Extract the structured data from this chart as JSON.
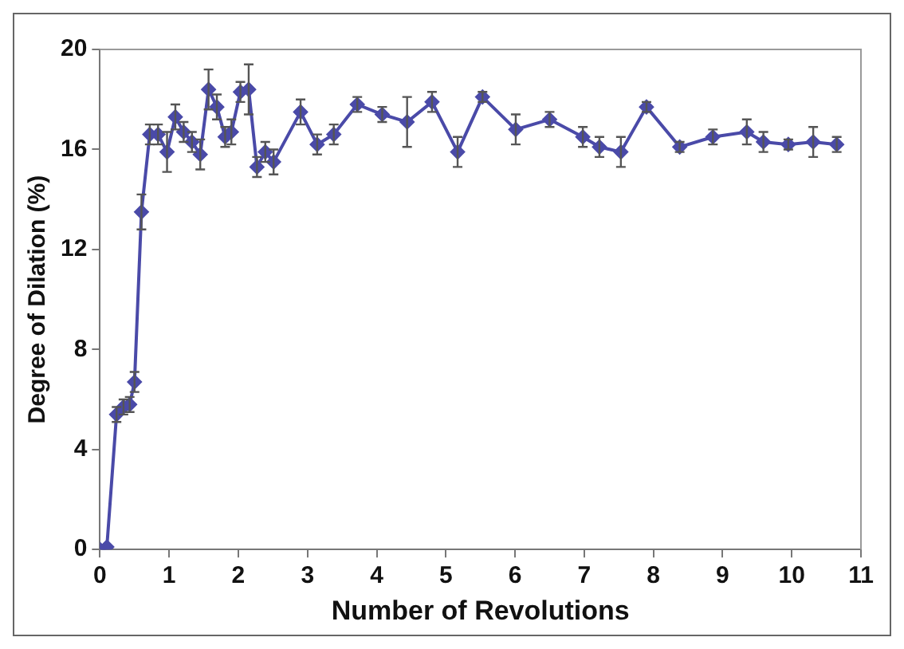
{
  "chart_data": {
    "type": "line",
    "xlabel": "Number of Revolutions",
    "ylabel": "Degree of Dilation (%)",
    "xlim": [
      0,
      11
    ],
    "xticks": [
      0,
      1,
      2,
      3,
      4,
      5,
      6,
      7,
      8,
      9,
      10,
      11
    ],
    "ylim": [
      0,
      20
    ],
    "yticks": [
      0,
      4,
      8,
      12,
      16,
      20
    ],
    "grid": false,
    "legend": false,
    "marker": "diamond",
    "line_style": "solid",
    "series": [
      {
        "color": "#4a4aa8",
        "x": [
          0,
          0.1,
          0.24,
          0.34,
          0.43,
          0.5,
          0.6,
          0.72,
          0.84,
          0.97,
          1.09,
          1.21,
          1.33,
          1.45,
          1.57,
          1.69,
          1.81,
          1.9,
          2.03,
          2.15,
          2.27,
          2.39,
          2.51,
          2.9,
          3.14,
          3.38,
          3.72,
          4.08,
          4.44,
          4.8,
          5.17,
          5.53,
          6.01,
          6.5,
          6.98,
          7.22,
          7.53,
          7.9,
          8.38,
          8.86,
          9.35,
          9.59,
          9.95,
          10.31,
          10.65
        ],
        "values": [
          0,
          0.1,
          5.4,
          5.7,
          5.8,
          6.7,
          13.5,
          16.6,
          16.6,
          15.9,
          17.3,
          16.7,
          16.3,
          15.8,
          18.4,
          17.7,
          16.5,
          16.7,
          18.3,
          18.4,
          15.3,
          15.9,
          15.5,
          17.5,
          16.2,
          16.6,
          17.8,
          17.4,
          17.1,
          17.9,
          15.9,
          18.1,
          16.8,
          17.2,
          16.5,
          16.1,
          15.9,
          17.7,
          16.1,
          16.5,
          16.7,
          16.3,
          16.2,
          16.3,
          16.2
        ],
        "errors": [
          null,
          null,
          0.3,
          0.3,
          0.3,
          0.4,
          0.7,
          0.4,
          0.4,
          0.8,
          0.5,
          0.4,
          0.4,
          0.6,
          0.8,
          0.5,
          0.4,
          0.5,
          0.4,
          1.0,
          0.4,
          0.4,
          0.5,
          0.5,
          0.4,
          0.4,
          0.3,
          0.3,
          1.0,
          0.4,
          0.6,
          0.2,
          0.6,
          0.3,
          0.4,
          0.4,
          0.6,
          0.2,
          0.2,
          0.3,
          0.5,
          0.4,
          0.2,
          0.6,
          0.3
        ]
      }
    ]
  }
}
